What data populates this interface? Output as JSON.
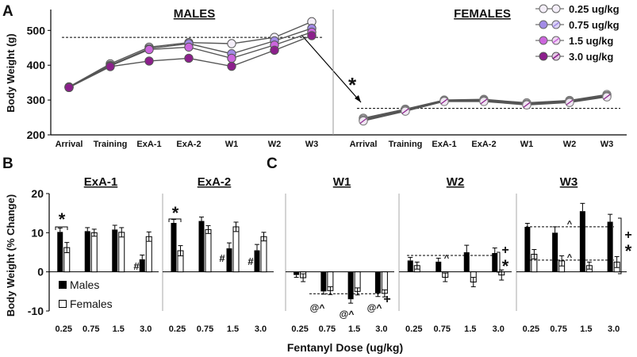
{
  "chart_data": [
    {
      "panel": "A",
      "type": "line",
      "ylabel": "Body Weight (g)",
      "ylim": [
        200,
        560
      ],
      "yticks": [
        200,
        300,
        400,
        500
      ],
      "categories": [
        "Arrival",
        "Training",
        "ExA-1",
        "ExA-2",
        "W1",
        "W2",
        "W3"
      ],
      "legend": {
        "items": [
          {
            "label": "0.25 ug/kg",
            "color": "#f4eef9",
            "hatch": false
          },
          {
            "label": "0.75 ug/kg",
            "color": "#a28be6",
            "hatch": false
          },
          {
            "label": "1.5 ug/kg",
            "color": "#cc66dd",
            "hatch": false
          },
          {
            "label": "3.0 ug/kg",
            "color": "#8c1f8c",
            "hatch": false
          }
        ],
        "females_marker_note": "hatched"
      },
      "groups": [
        {
          "title": "MALES",
          "reference_line": 480,
          "series": [
            {
              "name": "0.25 ug/kg",
              "values": [
                338,
                404,
                452,
                465,
                462,
                480,
                525
              ]
            },
            {
              "name": "0.75 ug/kg",
              "values": [
                337,
                400,
                448,
                462,
                433,
                470,
                506
              ]
            },
            {
              "name": "1.5 ug/kg",
              "values": [
                336,
                398,
                445,
                452,
                420,
                458,
                495
              ]
            },
            {
              "name": "3.0 ug/kg",
              "values": [
                336,
                396,
                412,
                420,
                397,
                443,
                485
              ]
            }
          ]
        },
        {
          "title": "FEMALES",
          "reference_line": 276,
          "series": [
            {
              "name": "0.25 ug/kg",
              "values": [
                248,
                274,
                300,
                302,
                292,
                299,
                316
              ]
            },
            {
              "name": "0.75 ug/kg",
              "values": [
                245,
                272,
                298,
                300,
                289,
                297,
                313
              ]
            },
            {
              "name": "1.5 ug/kg",
              "values": [
                242,
                270,
                297,
                298,
                287,
                295,
                311
              ]
            },
            {
              "name": "3.0 ug/kg",
              "values": [
                240,
                268,
                296,
                296,
                286,
                293,
                309
              ]
            }
          ]
        }
      ],
      "annotations": [
        "*"
      ]
    },
    {
      "panel": "B",
      "type": "bar",
      "ylabel": "Body Weight (% Change)",
      "ylim": [
        -10,
        20
      ],
      "yticks": [
        -10,
        0,
        10,
        20
      ],
      "categories": [
        "0.25",
        "0.75",
        "1.5",
        "3.0"
      ],
      "legend": [
        "Males",
        "Females"
      ],
      "groups": [
        {
          "title": "ExA-1",
          "males": [
            10.2,
            10.4,
            10.8,
            3.2
          ],
          "females": [
            6.2,
            10.0,
            10.1,
            9.0
          ],
          "males_err": [
            1.0,
            0.9,
            1.1,
            1.1
          ],
          "females_err": [
            1.3,
            0.9,
            1.2,
            1.2
          ],
          "marks": [
            "*",
            "#"
          ]
        },
        {
          "title": "ExA-2",
          "males": [
            12.5,
            13.0,
            6.0,
            5.5
          ],
          "females": [
            5.4,
            10.8,
            11.5,
            9.0
          ],
          "males_err": [
            0.9,
            1.0,
            1.4,
            1.5
          ],
          "females_err": [
            1.3,
            1.0,
            1.2,
            1.1
          ],
          "marks": [
            "*",
            "#",
            "#"
          ]
        }
      ]
    },
    {
      "panel": "C",
      "type": "bar",
      "ylim": [
        -10,
        20
      ],
      "categories": [
        "0.25",
        "0.75",
        "1.5",
        "3.0"
      ],
      "xlabel": "Fentanyl Dose (ug/kg)",
      "groups": [
        {
          "title": "W1",
          "males": [
            -0.8,
            -5.0,
            -7.0,
            -5.5
          ],
          "females": [
            -1.5,
            -4.8,
            -5.0,
            -5.5
          ],
          "males_err": [
            0.6,
            0.7,
            1.0,
            0.8
          ],
          "females_err": [
            1.0,
            1.0,
            0.9,
            0.9
          ],
          "marks": [
            "@^",
            "@^",
            "@^",
            "+"
          ]
        },
        {
          "title": "W2",
          "males": [
            2.9,
            2.6,
            5.0,
            4.8
          ],
          "females": [
            1.6,
            -1.4,
            -2.6,
            -0.8
          ],
          "males_err": [
            0.8,
            0.9,
            1.8,
            1.3
          ],
          "females_err": [
            0.9,
            1.1,
            1.2,
            1.3
          ],
          "marks": [
            "^",
            "+",
            "*"
          ]
        },
        {
          "title": "W3",
          "males": [
            11.5,
            10.0,
            15.5,
            12.8
          ],
          "females": [
            4.5,
            2.8,
            1.6,
            2.5
          ],
          "males_err": [
            0.9,
            1.5,
            2.0,
            1.9
          ],
          "females_err": [
            1.2,
            1.3,
            0.9,
            1.4
          ],
          "marks": [
            "^",
            "^",
            "+",
            "*"
          ]
        }
      ]
    }
  ],
  "panel_labels": [
    "A",
    "B",
    "C"
  ]
}
